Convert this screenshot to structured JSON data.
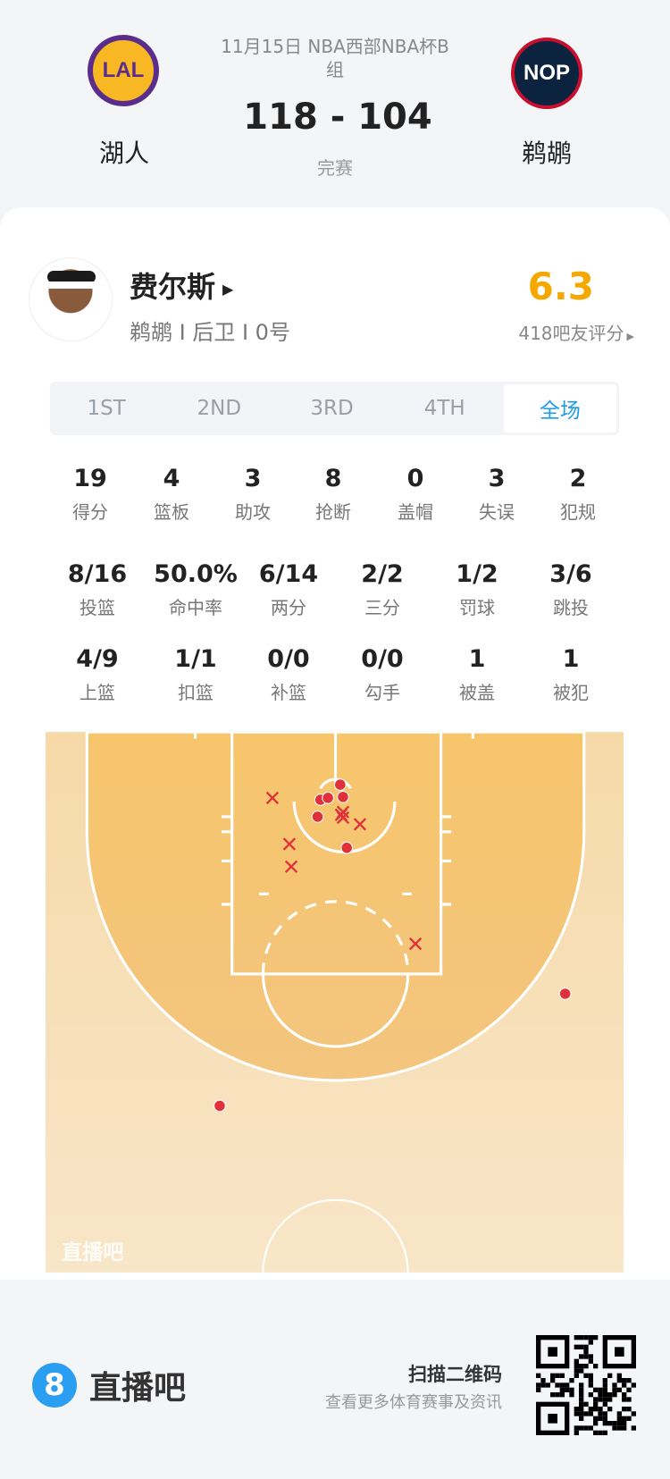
{
  "match": {
    "date_event": "11月15日 NBA西部NBA杯B",
    "date_event_line2": "组",
    "score": "118 - 104",
    "status": "完赛",
    "home": {
      "name": "湖人",
      "abbr": "LAL"
    },
    "away": {
      "name": "鹈鹕",
      "abbr": "NOP"
    }
  },
  "player": {
    "name": "费尔斯",
    "meta": "鹈鹕 I 后卫 I 0号",
    "rating": "6.3",
    "rating_label": "418吧友评分"
  },
  "tabs": [
    {
      "label": "1ST"
    },
    {
      "label": "2ND"
    },
    {
      "label": "3RD"
    },
    {
      "label": "4TH"
    },
    {
      "label": "全场",
      "active": true
    }
  ],
  "stats_row1": [
    {
      "v": "19",
      "l": "得分"
    },
    {
      "v": "4",
      "l": "篮板"
    },
    {
      "v": "3",
      "l": "助攻"
    },
    {
      "v": "8",
      "l": "抢断"
    },
    {
      "v": "0",
      "l": "盖帽"
    },
    {
      "v": "3",
      "l": "失误"
    },
    {
      "v": "2",
      "l": "犯规"
    }
  ],
  "stats_row2": [
    {
      "v": "8/16",
      "l": "投篮"
    },
    {
      "v": "50.0%",
      "l": "命中率"
    },
    {
      "v": "6/14",
      "l": "两分"
    },
    {
      "v": "2/2",
      "l": "三分"
    },
    {
      "v": "1/2",
      "l": "罚球"
    },
    {
      "v": "3/6",
      "l": "跳投"
    }
  ],
  "stats_row3": [
    {
      "v": "4/9",
      "l": "上篮"
    },
    {
      "v": "1/1",
      "l": "扣篮"
    },
    {
      "v": "0/0",
      "l": "补篮"
    },
    {
      "v": "0/0",
      "l": "勾手"
    },
    {
      "v": "1",
      "l": "被盖"
    },
    {
      "v": "1",
      "l": "被犯"
    }
  ],
  "court": {
    "watermark": "直播吧",
    "shots": [
      "made",
      "made",
      "made",
      "made",
      "made",
      "made",
      "made",
      "made",
      "missed",
      "missed",
      "missed",
      "missed",
      "missed",
      "missed",
      "missed",
      "missed"
    ]
  },
  "footer": {
    "brand": "直播吧",
    "brand_icon": "8",
    "scan_title": "扫描二维码",
    "scan_sub": "查看更多体育赛事及资讯"
  },
  "colors": {
    "accent": "#1e9be8",
    "rating": "#f5a800",
    "shot": "#e0303a",
    "court_inner": "#f5c66f",
    "court_outer": "#f8e3c2"
  }
}
